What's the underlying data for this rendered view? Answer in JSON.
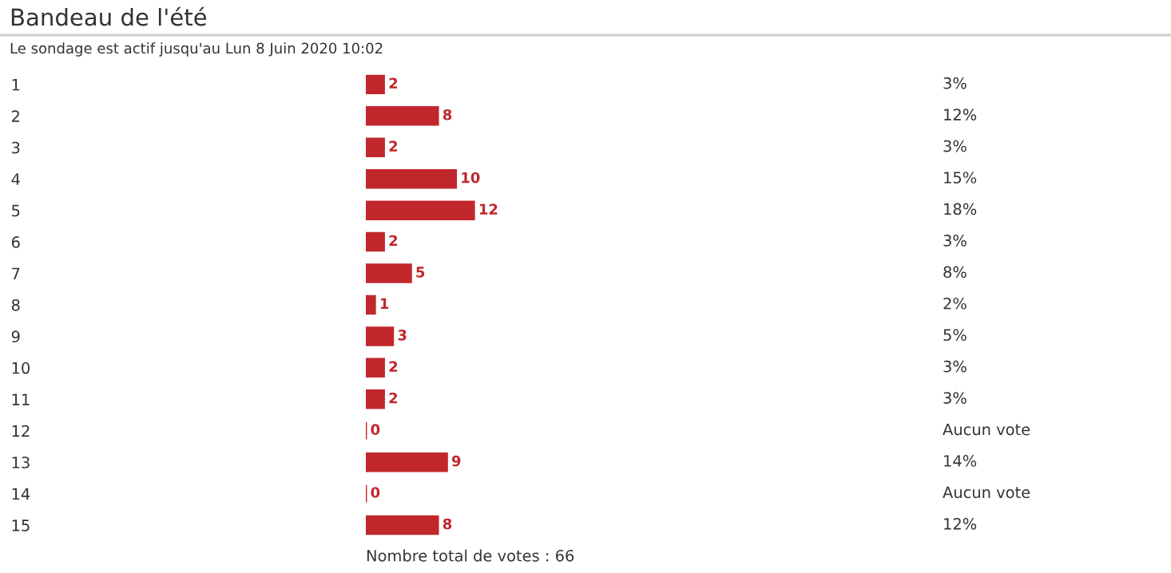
{
  "chart_data": {
    "type": "bar",
    "orientation": "horizontal",
    "title": "Bandeau de l'été",
    "subtitle": "Le sondage est actif jusqu'au Lun 8 Juin 2020 10:02",
    "categories": [
      "1",
      "2",
      "3",
      "4",
      "5",
      "6",
      "7",
      "8",
      "9",
      "10",
      "11",
      "12",
      "13",
      "14",
      "15"
    ],
    "values": [
      2,
      8,
      2,
      10,
      12,
      2,
      5,
      1,
      3,
      2,
      2,
      0,
      9,
      0,
      8
    ],
    "color": "#c1272d",
    "data_labels": true,
    "tick_labels": "y",
    "grid": false,
    "legend": false,
    "annotations": [
      "3%",
      "12%",
      "3%",
      "15%",
      "18%",
      "3%",
      "8%",
      "2%",
      "5%",
      "3%",
      "3%",
      "Aucun vote",
      "14%",
      "Aucun vote",
      "12%",
      "Nombre total de votes : 66"
    ]
  }
}
